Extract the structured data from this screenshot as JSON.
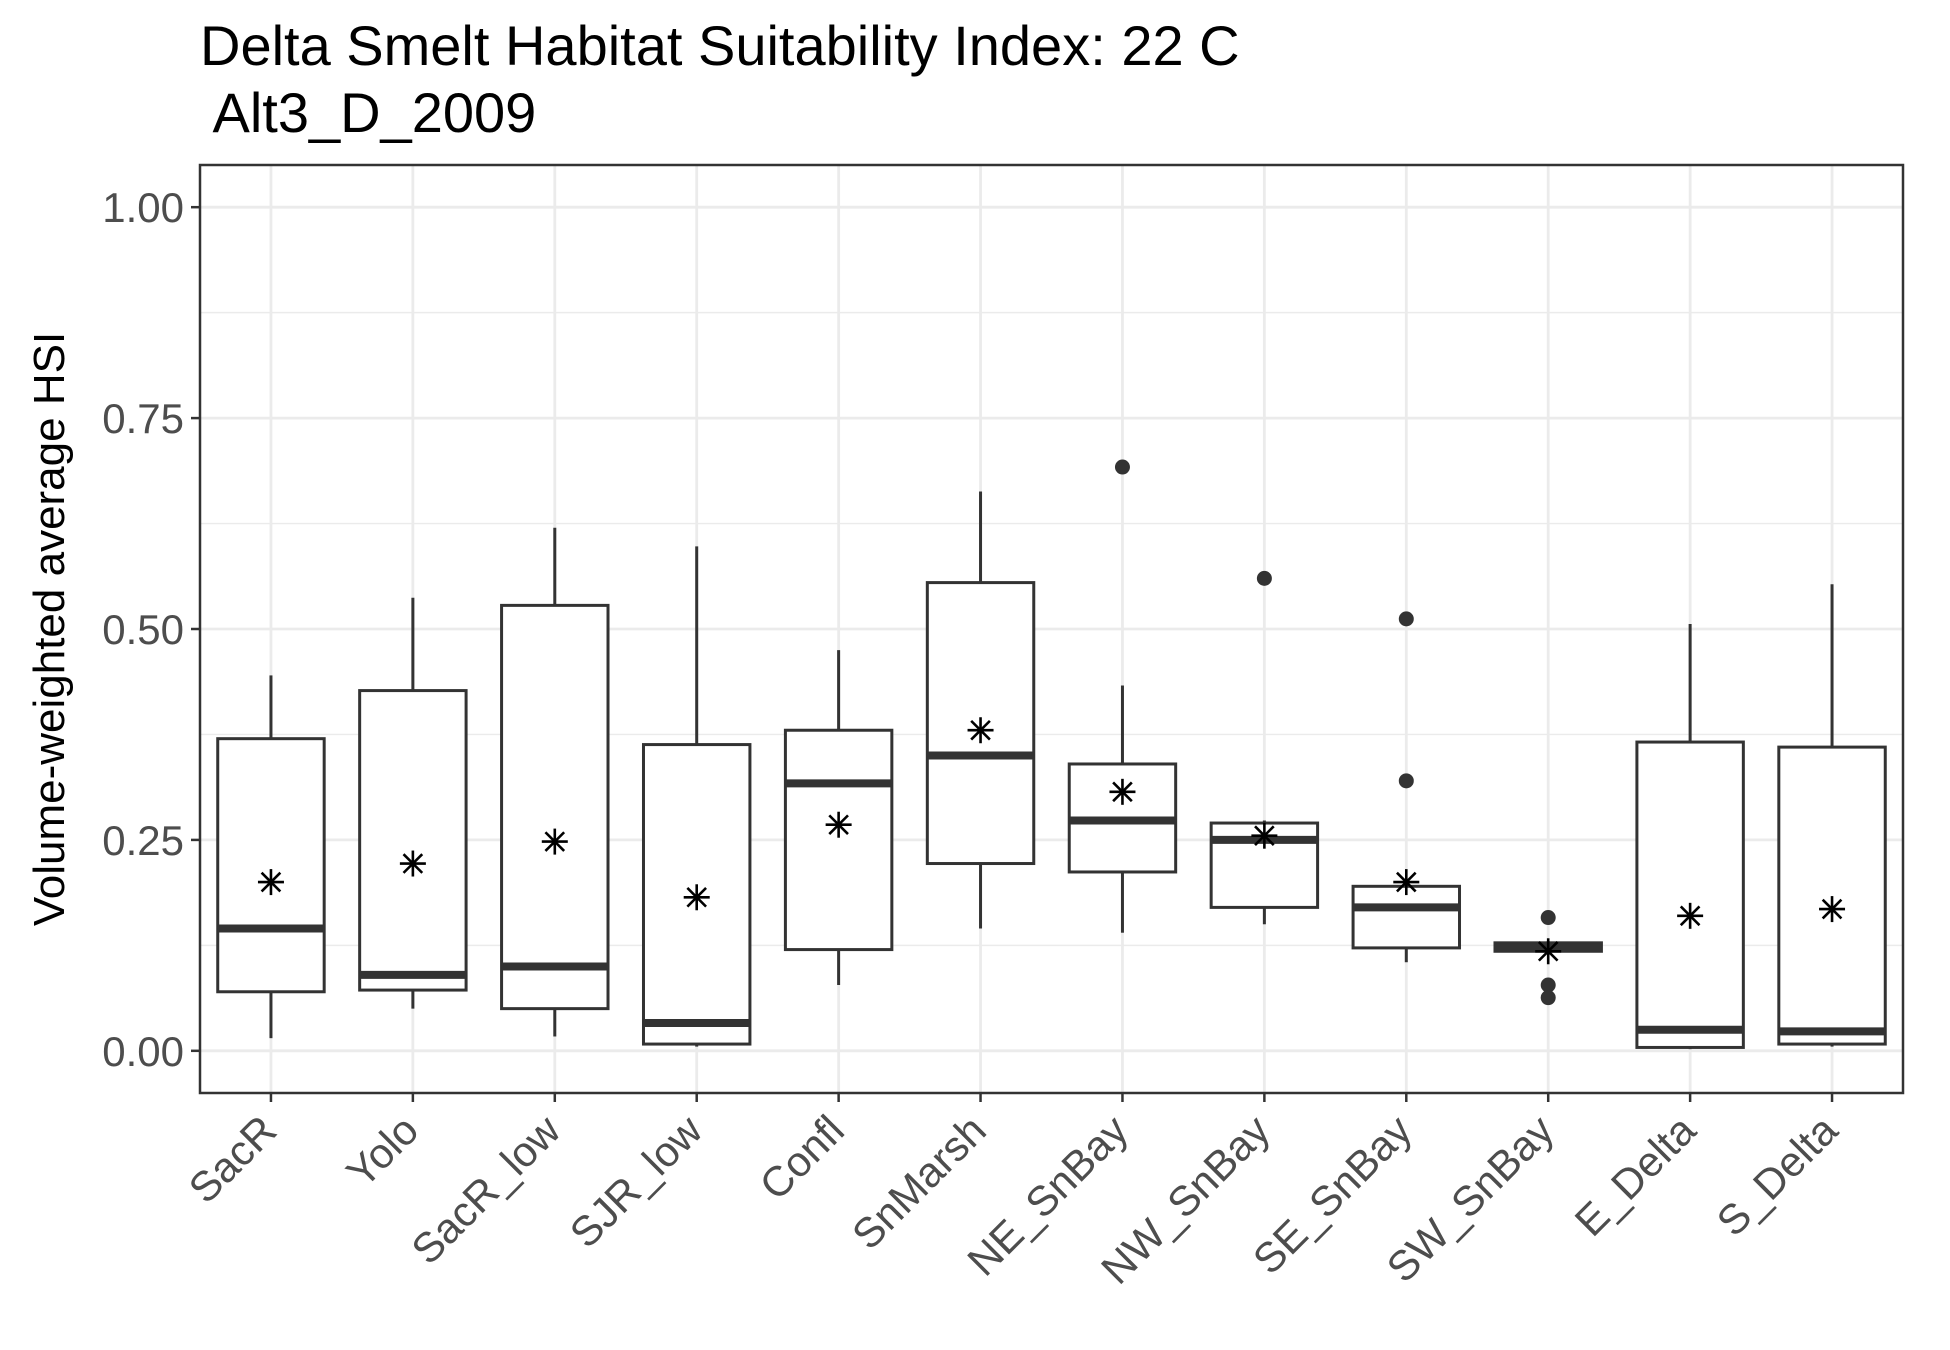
{
  "chart_data": {
    "type": "boxplot",
    "title_line1": "Delta Smelt Habitat Suitability Index: 22 C",
    "title_line2": " Alt3_D_2009",
    "xlabel": "",
    "ylabel": "Volume-weighted average HSI",
    "ylim": [
      -0.05,
      1.05
    ],
    "y_ticks": [
      0.0,
      0.25,
      0.5,
      0.75,
      1.0
    ],
    "y_tick_labels": [
      "0.00",
      "0.25",
      "0.50",
      "0.75",
      "1.00"
    ],
    "y_minor_ticks": [
      0.125,
      0.375,
      0.625,
      0.875
    ],
    "grid": true,
    "mean_marker": "asterisk",
    "categories": [
      "SacR",
      "Yolo",
      "SacR_low",
      "SJR_low",
      "Confl",
      "SnMarsh",
      "NE_SnBay",
      "NW_SnBay",
      "SE_SnBay",
      "SW_SnBay",
      "E_Delta",
      "S_Delta"
    ],
    "boxes": [
      {
        "category": "SacR",
        "whisker_low": 0.015,
        "q1": 0.07,
        "median": 0.145,
        "q3": 0.37,
        "whisker_high": 0.445,
        "mean": 0.2,
        "outliers": []
      },
      {
        "category": "Yolo",
        "whisker_low": 0.05,
        "q1": 0.072,
        "median": 0.09,
        "q3": 0.427,
        "whisker_high": 0.537,
        "mean": 0.222,
        "outliers": []
      },
      {
        "category": "SacR_low",
        "whisker_low": 0.017,
        "q1": 0.05,
        "median": 0.1,
        "q3": 0.528,
        "whisker_high": 0.62,
        "mean": 0.248,
        "outliers": []
      },
      {
        "category": "SJR_low",
        "whisker_low": 0.005,
        "q1": 0.008,
        "median": 0.033,
        "q3": 0.363,
        "whisker_high": 0.598,
        "mean": 0.182,
        "outliers": []
      },
      {
        "category": "Confl",
        "whisker_low": 0.078,
        "q1": 0.12,
        "median": 0.317,
        "q3": 0.38,
        "whisker_high": 0.475,
        "mean": 0.268,
        "outliers": []
      },
      {
        "category": "SnMarsh",
        "whisker_low": 0.145,
        "q1": 0.222,
        "median": 0.35,
        "q3": 0.555,
        "whisker_high": 0.663,
        "mean": 0.38,
        "outliers": []
      },
      {
        "category": "NE_SnBay",
        "whisker_low": 0.14,
        "q1": 0.212,
        "median": 0.273,
        "q3": 0.34,
        "whisker_high": 0.433,
        "mean": 0.307,
        "outliers": [
          0.692
        ]
      },
      {
        "category": "NW_SnBay",
        "whisker_low": 0.15,
        "q1": 0.17,
        "median": 0.25,
        "q3": 0.27,
        "whisker_high": 0.273,
        "mean": 0.255,
        "outliers": [
          0.56
        ]
      },
      {
        "category": "SE_SnBay",
        "whisker_low": 0.105,
        "q1": 0.122,
        "median": 0.17,
        "q3": 0.195,
        "whisker_high": 0.196,
        "mean": 0.2,
        "outliers": [
          0.32,
          0.512
        ]
      },
      {
        "category": "SW_SnBay",
        "whisker_low": 0.115,
        "q1": 0.118,
        "median": 0.122,
        "q3": 0.128,
        "whisker_high": 0.13,
        "mean": 0.118,
        "outliers": [
          0.158,
          0.078,
          0.063
        ]
      },
      {
        "category": "E_Delta",
        "whisker_low": 0.002,
        "q1": 0.004,
        "median": 0.025,
        "q3": 0.366,
        "whisker_high": 0.506,
        "mean": 0.16,
        "outliers": []
      },
      {
        "category": "S_Delta",
        "whisker_low": 0.005,
        "q1": 0.008,
        "median": 0.023,
        "q3": 0.36,
        "whisker_high": 0.553,
        "mean": 0.168,
        "outliers": []
      }
    ]
  },
  "colors": {
    "background": "#ffffff",
    "grid": "#ebebeb",
    "box_line": "#333333",
    "tick_text": "#4d4d4d",
    "title_text": "#000000"
  }
}
